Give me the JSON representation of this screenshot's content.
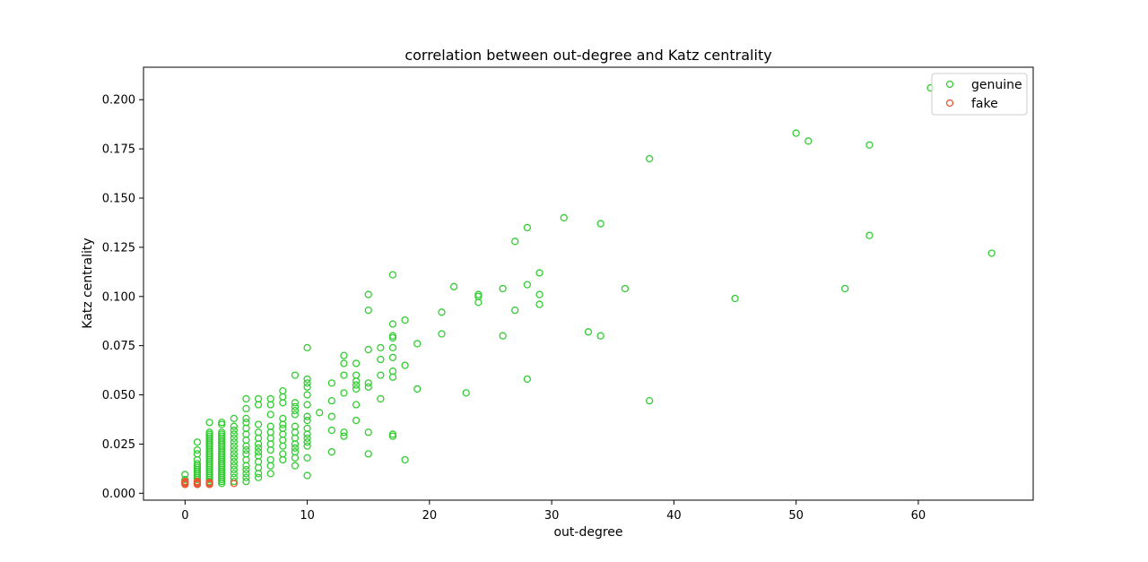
{
  "chart_data": {
    "type": "scatter",
    "title": "correlation between out-degree and Katz centrality",
    "xlabel": "out-degree",
    "ylabel": "Katz centrality",
    "xlim": [
      -3.4,
      69.4
    ],
    "ylim": [
      -0.0035,
      0.2165
    ],
    "xticks": [
      0,
      10,
      20,
      30,
      40,
      50,
      60
    ],
    "xtick_labels": [
      "0",
      "10",
      "20",
      "30",
      "40",
      "50",
      "60"
    ],
    "yticks": [
      0.0,
      0.025,
      0.05,
      0.075,
      0.1,
      0.125,
      0.15,
      0.175,
      0.2
    ],
    "ytick_labels": [
      "0.000",
      "0.025",
      "0.050",
      "0.075",
      "0.100",
      "0.125",
      "0.150",
      "0.175",
      "0.200"
    ],
    "grid": false,
    "legend_position": "top-right",
    "series": [
      {
        "name": "genuine",
        "color": "#33cc33",
        "marker": "hollow-circle",
        "points": [
          [
            0,
            0.005
          ],
          [
            0,
            0.006
          ],
          [
            0,
            0.007
          ],
          [
            0,
            0.0095
          ],
          [
            1,
            0.005
          ],
          [
            1,
            0.006
          ],
          [
            1,
            0.007
          ],
          [
            1,
            0.008
          ],
          [
            1,
            0.009
          ],
          [
            1,
            0.01
          ],
          [
            1,
            0.011
          ],
          [
            1,
            0.012
          ],
          [
            1,
            0.013
          ],
          [
            1,
            0.014
          ],
          [
            1,
            0.015
          ],
          [
            1,
            0.017
          ],
          [
            1,
            0.02
          ],
          [
            1,
            0.022
          ],
          [
            1,
            0.026
          ],
          [
            2,
            0.005
          ],
          [
            2,
            0.006
          ],
          [
            2,
            0.007
          ],
          [
            2,
            0.008
          ],
          [
            2,
            0.009
          ],
          [
            2,
            0.01
          ],
          [
            2,
            0.011
          ],
          [
            2,
            0.012
          ],
          [
            2,
            0.013
          ],
          [
            2,
            0.014
          ],
          [
            2,
            0.015
          ],
          [
            2,
            0.016
          ],
          [
            2,
            0.017
          ],
          [
            2,
            0.018
          ],
          [
            2,
            0.019
          ],
          [
            2,
            0.02
          ],
          [
            2,
            0.021
          ],
          [
            2,
            0.022
          ],
          [
            2,
            0.023
          ],
          [
            2,
            0.024
          ],
          [
            2,
            0.025
          ],
          [
            2,
            0.026
          ],
          [
            2,
            0.027
          ],
          [
            2,
            0.028
          ],
          [
            2,
            0.029
          ],
          [
            2,
            0.03
          ],
          [
            2,
            0.031
          ],
          [
            2,
            0.036
          ],
          [
            3,
            0.005
          ],
          [
            3,
            0.006
          ],
          [
            3,
            0.007
          ],
          [
            3,
            0.008
          ],
          [
            3,
            0.009
          ],
          [
            3,
            0.01
          ],
          [
            3,
            0.011
          ],
          [
            3,
            0.012
          ],
          [
            3,
            0.013
          ],
          [
            3,
            0.014
          ],
          [
            3,
            0.015
          ],
          [
            3,
            0.016
          ],
          [
            3,
            0.017
          ],
          [
            3,
            0.018
          ],
          [
            3,
            0.019
          ],
          [
            3,
            0.02
          ],
          [
            3,
            0.021
          ],
          [
            3,
            0.022
          ],
          [
            3,
            0.023
          ],
          [
            3,
            0.024
          ],
          [
            3,
            0.025
          ],
          [
            3,
            0.026
          ],
          [
            3,
            0.027
          ],
          [
            3,
            0.028
          ],
          [
            3,
            0.029
          ],
          [
            3,
            0.03
          ],
          [
            3,
            0.031
          ],
          [
            3,
            0.035
          ],
          [
            3,
            0.036
          ],
          [
            4,
            0.006
          ],
          [
            4,
            0.008
          ],
          [
            4,
            0.01
          ],
          [
            4,
            0.012
          ],
          [
            4,
            0.014
          ],
          [
            4,
            0.016
          ],
          [
            4,
            0.018
          ],
          [
            4,
            0.02
          ],
          [
            4,
            0.022
          ],
          [
            4,
            0.024
          ],
          [
            4,
            0.026
          ],
          [
            4,
            0.028
          ],
          [
            4,
            0.03
          ],
          [
            4,
            0.032
          ],
          [
            4,
            0.034
          ],
          [
            4,
            0.038
          ],
          [
            5,
            0.006
          ],
          [
            5,
            0.008
          ],
          [
            5,
            0.01
          ],
          [
            5,
            0.012
          ],
          [
            5,
            0.014
          ],
          [
            5,
            0.017
          ],
          [
            5,
            0.02
          ],
          [
            5,
            0.022
          ],
          [
            5,
            0.024
          ],
          [
            5,
            0.027
          ],
          [
            5,
            0.03
          ],
          [
            5,
            0.033
          ],
          [
            5,
            0.036
          ],
          [
            5,
            0.038
          ],
          [
            5,
            0.043
          ],
          [
            5,
            0.048
          ],
          [
            6,
            0.008
          ],
          [
            6,
            0.01
          ],
          [
            6,
            0.013
          ],
          [
            6,
            0.016
          ],
          [
            6,
            0.019
          ],
          [
            6,
            0.021
          ],
          [
            6,
            0.023
          ],
          [
            6,
            0.025
          ],
          [
            6,
            0.028
          ],
          [
            6,
            0.031
          ],
          [
            6,
            0.035
          ],
          [
            6,
            0.045
          ],
          [
            6,
            0.048
          ],
          [
            7,
            0.01
          ],
          [
            7,
            0.014
          ],
          [
            7,
            0.017
          ],
          [
            7,
            0.022
          ],
          [
            7,
            0.025
          ],
          [
            7,
            0.028
          ],
          [
            7,
            0.031
          ],
          [
            7,
            0.034
          ],
          [
            7,
            0.04
          ],
          [
            7,
            0.045
          ],
          [
            7,
            0.048
          ],
          [
            8,
            0.017
          ],
          [
            8,
            0.02
          ],
          [
            8,
            0.024
          ],
          [
            8,
            0.027
          ],
          [
            8,
            0.03
          ],
          [
            8,
            0.033
          ],
          [
            8,
            0.035
          ],
          [
            8,
            0.038
          ],
          [
            8,
            0.046
          ],
          [
            8,
            0.049
          ],
          [
            8,
            0.052
          ],
          [
            9,
            0.014
          ],
          [
            9,
            0.018
          ],
          [
            9,
            0.021
          ],
          [
            9,
            0.023
          ],
          [
            9,
            0.025
          ],
          [
            9,
            0.028
          ],
          [
            9,
            0.031
          ],
          [
            9,
            0.034
          ],
          [
            9,
            0.04
          ],
          [
            9,
            0.042
          ],
          [
            9,
            0.044
          ],
          [
            9,
            0.046
          ],
          [
            9,
            0.06
          ],
          [
            10,
            0.009
          ],
          [
            10,
            0.018
          ],
          [
            10,
            0.024
          ],
          [
            10,
            0.026
          ],
          [
            10,
            0.028
          ],
          [
            10,
            0.03
          ],
          [
            10,
            0.033
          ],
          [
            10,
            0.037
          ],
          [
            10,
            0.039
          ],
          [
            10,
            0.045
          ],
          [
            10,
            0.05
          ],
          [
            10,
            0.054
          ],
          [
            10,
            0.056
          ],
          [
            10,
            0.058
          ],
          [
            10,
            0.074
          ],
          [
            11,
            0.041
          ],
          [
            12,
            0.021
          ],
          [
            12,
            0.032
          ],
          [
            12,
            0.039
          ],
          [
            12,
            0.047
          ],
          [
            12,
            0.056
          ],
          [
            13,
            0.029
          ],
          [
            13,
            0.031
          ],
          [
            13,
            0.051
          ],
          [
            13,
            0.06
          ],
          [
            13,
            0.066
          ],
          [
            13,
            0.07
          ],
          [
            14,
            0.037
          ],
          [
            14,
            0.045
          ],
          [
            14,
            0.053
          ],
          [
            14,
            0.055
          ],
          [
            14,
            0.057
          ],
          [
            14,
            0.06
          ],
          [
            14,
            0.066
          ],
          [
            15,
            0.02
          ],
          [
            15,
            0.031
          ],
          [
            15,
            0.054
          ],
          [
            15,
            0.056
          ],
          [
            15,
            0.073
          ],
          [
            15,
            0.093
          ],
          [
            15,
            0.101
          ],
          [
            16,
            0.048
          ],
          [
            16,
            0.06
          ],
          [
            16,
            0.068
          ],
          [
            16,
            0.074
          ],
          [
            17,
            0.029
          ],
          [
            17,
            0.03
          ],
          [
            17,
            0.059
          ],
          [
            17,
            0.062
          ],
          [
            17,
            0.069
          ],
          [
            17,
            0.074
          ],
          [
            17,
            0.079
          ],
          [
            17,
            0.08
          ],
          [
            17,
            0.086
          ],
          [
            17,
            0.111
          ],
          [
            18,
            0.017
          ],
          [
            18,
            0.065
          ],
          [
            18,
            0.088
          ],
          [
            19,
            0.053
          ],
          [
            19,
            0.076
          ],
          [
            21,
            0.081
          ],
          [
            21,
            0.092
          ],
          [
            22,
            0.105
          ],
          [
            23,
            0.051
          ],
          [
            24,
            0.097
          ],
          [
            24,
            0.1
          ],
          [
            24,
            0.101
          ],
          [
            26,
            0.08
          ],
          [
            26,
            0.104
          ],
          [
            27,
            0.093
          ],
          [
            27,
            0.128
          ],
          [
            28,
            0.058
          ],
          [
            28,
            0.106
          ],
          [
            28,
            0.135
          ],
          [
            29,
            0.096
          ],
          [
            29,
            0.101
          ],
          [
            29,
            0.112
          ],
          [
            31,
            0.14
          ],
          [
            33,
            0.082
          ],
          [
            34,
            0.08
          ],
          [
            34,
            0.137
          ],
          [
            36,
            0.104
          ],
          [
            38,
            0.047
          ],
          [
            38,
            0.17
          ],
          [
            45,
            0.099
          ],
          [
            50,
            0.183
          ],
          [
            51,
            0.179
          ],
          [
            54,
            0.104
          ],
          [
            56,
            0.131
          ],
          [
            56,
            0.177
          ],
          [
            61,
            0.206
          ],
          [
            66,
            0.122
          ]
        ]
      },
      {
        "name": "fake",
        "color": "#ee5533",
        "marker": "hollow-circle",
        "points": [
          [
            0,
            0.0045
          ],
          [
            0,
            0.005
          ],
          [
            0,
            0.0055
          ],
          [
            0,
            0.006
          ],
          [
            1,
            0.0045
          ],
          [
            1,
            0.005
          ],
          [
            1,
            0.0055
          ],
          [
            1,
            0.006
          ],
          [
            2,
            0.0045
          ],
          [
            2,
            0.005
          ],
          [
            2,
            0.0055
          ],
          [
            4,
            0.005
          ]
        ]
      }
    ]
  }
}
